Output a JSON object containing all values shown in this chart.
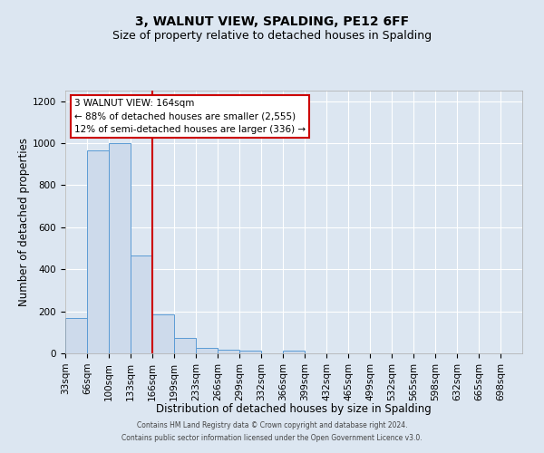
{
  "title": "3, WALNUT VIEW, SPALDING, PE12 6FF",
  "subtitle": "Size of property relative to detached houses in Spalding",
  "xlabel": "Distribution of detached houses by size in Spalding",
  "ylabel": "Number of detached properties",
  "bin_labels": [
    "33sqm",
    "66sqm",
    "100sqm",
    "133sqm",
    "166sqm",
    "199sqm",
    "233sqm",
    "266sqm",
    "299sqm",
    "332sqm",
    "366sqm",
    "399sqm",
    "432sqm",
    "465sqm",
    "499sqm",
    "532sqm",
    "565sqm",
    "598sqm",
    "632sqm",
    "665sqm",
    "698sqm"
  ],
  "bar_values": [
    170,
    965,
    1000,
    465,
    185,
    75,
    25,
    18,
    12,
    0,
    12,
    0,
    0,
    0,
    0,
    0,
    0,
    0,
    0,
    0,
    0
  ],
  "bar_color": "#cddaeb",
  "bar_edge_color": "#5b9bd5",
  "vline_color": "#cc0000",
  "vline_position": 3.5,
  "ylim": [
    0,
    1250
  ],
  "yticks": [
    0,
    200,
    400,
    600,
    800,
    1000,
    1200
  ],
  "annotation_title": "3 WALNUT VIEW: 164sqm",
  "annotation_line1": "← 88% of detached houses are smaller (2,555)",
  "annotation_line2": "12% of semi-detached houses are larger (336) →",
  "annotation_box_color": "#ffffff",
  "annotation_box_edge": "#cc0000",
  "footer_line1": "Contains HM Land Registry data © Crown copyright and database right 2024.",
  "footer_line2": "Contains public sector information licensed under the Open Government Licence v3.0.",
  "background_color": "#dce6f1",
  "plot_bg_color": "#dce6f1",
  "grid_color": "#ffffff",
  "title_fontsize": 10,
  "subtitle_fontsize": 9,
  "xlabel_fontsize": 8.5,
  "ylabel_fontsize": 8.5,
  "tick_fontsize": 7.5,
  "annotation_fontsize": 7.5,
  "footer_fontsize": 5.5
}
